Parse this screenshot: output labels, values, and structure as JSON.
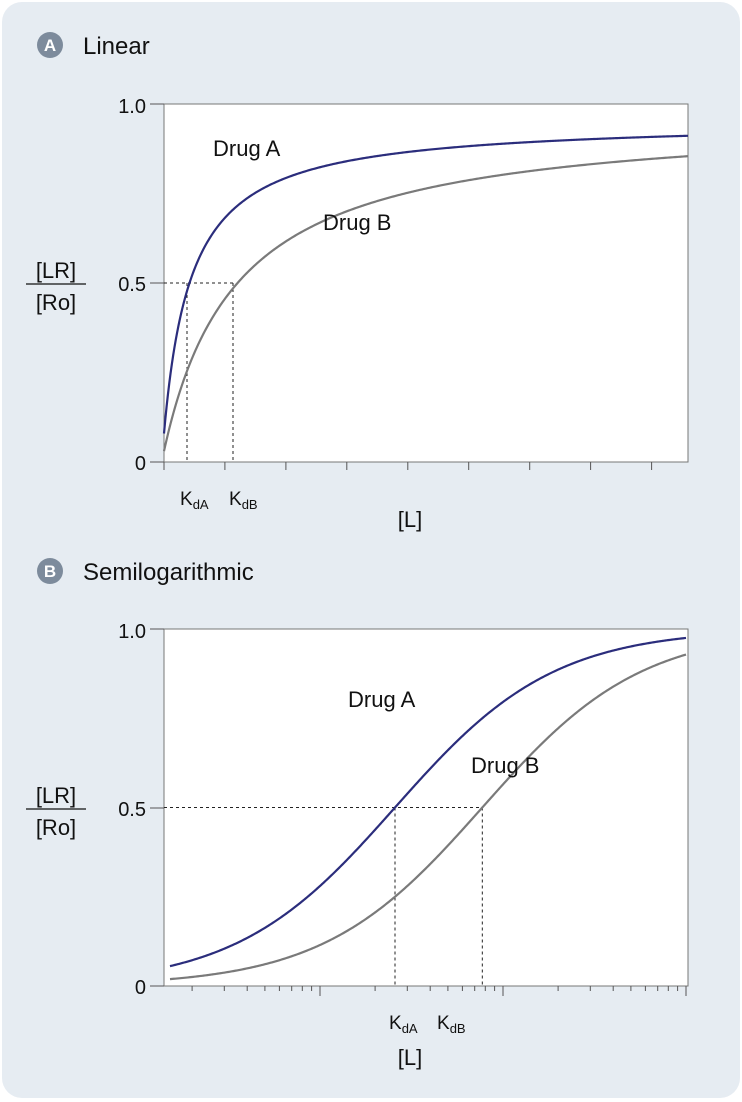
{
  "colors": {
    "background": "#e6ecf2",
    "drug_a": "#2b2d7c",
    "drug_b": "#7a7a7a"
  },
  "chart_data": [
    {
      "type": "line",
      "badge": "A",
      "title": "Linear",
      "xlabel": "[L]",
      "ylabel_num": "[LR]",
      "ylabel_den": "[Ro]",
      "yticks": [
        "0",
        "0.5",
        "1.0"
      ],
      "ylim": [
        0,
        1
      ],
      "xscale": "linear",
      "kd_labels": [
        {
          "main": "K",
          "sub": "dA"
        },
        {
          "main": "K",
          "sub": "dB"
        }
      ],
      "series": [
        {
          "name": "Drug A",
          "kd": 1,
          "max": 0.955,
          "color": "#2b2d7c"
        },
        {
          "name": "Drug B",
          "kd": 3,
          "max": 0.97,
          "color": "#7a7a7a"
        }
      ]
    },
    {
      "type": "line",
      "badge": "B",
      "title": "Semilogarithmic",
      "xlabel": "[L]",
      "ylabel_num": "[LR]",
      "ylabel_den": "[Ro]",
      "yticks": [
        "0",
        "0.5",
        "1.0"
      ],
      "ylim": [
        0,
        1
      ],
      "xscale": "log",
      "kd_labels": [
        {
          "main": "K",
          "sub": "dA"
        },
        {
          "main": "K",
          "sub": "dB"
        }
      ],
      "series": [
        {
          "name": "Drug A",
          "kd": 1,
          "max": 1.0,
          "color": "#2b2d7c"
        },
        {
          "name": "Drug B",
          "kd": 3,
          "max": 1.0,
          "color": "#7a7a7a"
        }
      ]
    }
  ]
}
